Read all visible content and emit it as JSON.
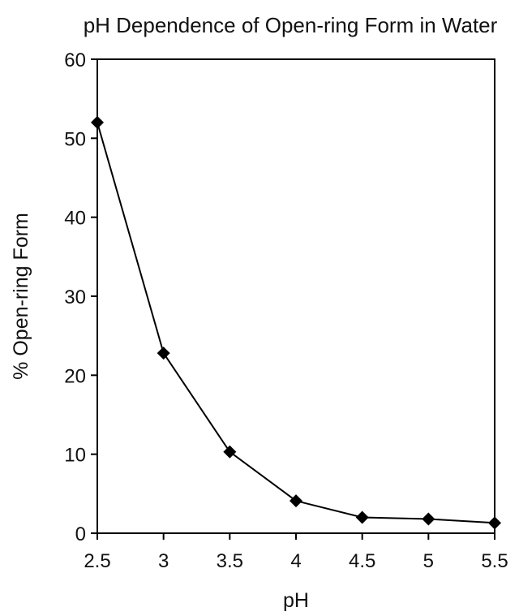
{
  "chart_data": {
    "type": "line",
    "title": "pH Dependence of Open-ring Form in Water",
    "xlabel": "pH",
    "ylabel": "% Open-ring Form",
    "xlim": [
      2.5,
      5.5
    ],
    "ylim": [
      0,
      60
    ],
    "x_ticks": [
      "2.5",
      "3",
      "3.5",
      "4",
      "4.5",
      "5",
      "5.5"
    ],
    "y_ticks": [
      "0",
      "10",
      "20",
      "30",
      "40",
      "50",
      "60"
    ],
    "grid": false,
    "legend": "none",
    "marker": "diamond",
    "line_color": "#000000",
    "series": [
      {
        "x": [
          2.5,
          3.0,
          3.5,
          4.0,
          4.5,
          5.0,
          5.5
        ],
        "y": [
          52,
          22.8,
          10.3,
          4.1,
          2.0,
          1.8,
          1.3
        ]
      }
    ]
  }
}
